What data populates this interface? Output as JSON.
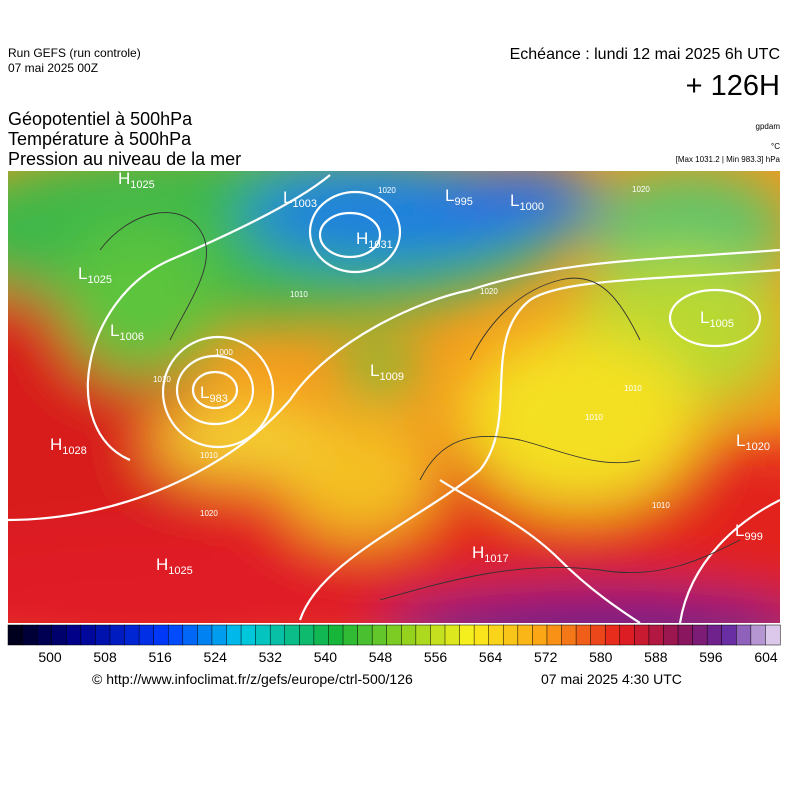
{
  "header": {
    "run": "Run GEFS (run controle)",
    "run_date": "07 mai 2025 00Z",
    "valid": "Echéance : lundi 12 mai 2025 6h UTC",
    "lead": "+ 126H",
    "fields": [
      "Géopotentiel à 500hPa",
      "Température à 500hPa",
      "Pression au niveau de la mer"
    ],
    "units": [
      "gpdam",
      "°C",
      "[Max 1031.2 | Min 983.3] hPa"
    ]
  },
  "map": {
    "centers": [
      {
        "type": "H",
        "value": 1025
      },
      {
        "type": "L",
        "value": 1025
      },
      {
        "type": "L",
        "value": 1006
      },
      {
        "type": "L",
        "value": 983
      },
      {
        "type": "H",
        "value": 1028
      },
      {
        "type": "H",
        "value": 1025
      },
      {
        "type": "L",
        "value": 1003
      },
      {
        "type": "H",
        "value": 1031
      },
      {
        "type": "L",
        "value": 995
      },
      {
        "type": "L",
        "value": 1000
      },
      {
        "type": "L",
        "value": 1009
      },
      {
        "type": "L",
        "value": 1005
      },
      {
        "type": "L",
        "value": 1020
      },
      {
        "type": "L",
        "value": 999
      },
      {
        "type": "H",
        "value": 1017
      }
    ],
    "contour_labels": [
      "1010",
      "1020",
      "1010",
      "1000",
      "1010",
      "1020",
      "1020",
      "1010",
      "1020",
      "1010",
      "1010"
    ]
  },
  "colorbar": {
    "ticks": [
      500,
      508,
      516,
      524,
      532,
      540,
      548,
      556,
      564,
      572,
      580,
      588,
      596,
      604
    ]
  },
  "footer": {
    "source": "© http://www.infoclimat.fr/z/gefs/europe/ctrl-500/126",
    "issued": "07 mai 2025  4:30 UTC"
  }
}
